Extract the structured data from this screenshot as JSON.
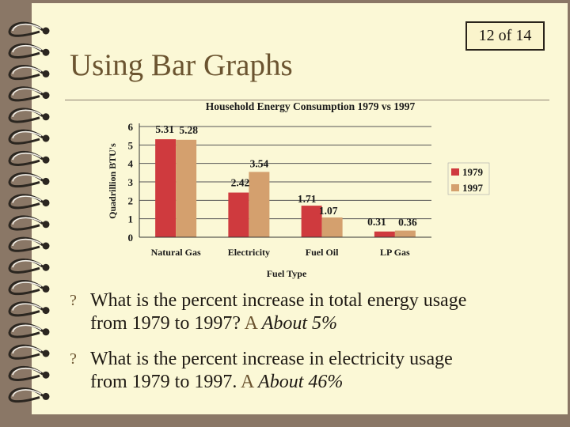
{
  "slide": {
    "counter": "12 of 14",
    "title": "Using Bar Graphs"
  },
  "bullets": [
    {
      "marker": "?",
      "line1": "What is the percent increase in total energy usage",
      "line2_prefix": "from 1979 to 1997?",
      "answer_mark": "A",
      "answer": "About 5%"
    },
    {
      "marker": "?",
      "line1": "What is the percent increase in electricity usage",
      "line2_prefix": "from 1979 to 1997.",
      "answer_mark": "A",
      "answer": "About 46%"
    }
  ],
  "colors": {
    "series_1979": "#cf3a3e",
    "series_1997": "#d4a06e",
    "title_text": "#6b5430",
    "page_background": "#fbf8d6",
    "frame_background": "#8a7766"
  },
  "chart_data": {
    "type": "bar",
    "title": "Household Energy Consumption 1979 vs 1997",
    "xlabel": "Fuel Type",
    "ylabel": "Quadrillion BTU's",
    "ylim": [
      0,
      6
    ],
    "yticks": [
      0,
      1,
      2,
      3,
      4,
      5,
      6
    ],
    "categories": [
      "Natural Gas",
      "Electricity",
      "Fuel Oil",
      "LP Gas"
    ],
    "series": [
      {
        "name": "1979",
        "values": [
          5.31,
          2.42,
          1.71,
          0.31
        ],
        "labels": [
          "5.31",
          "2.42",
          "1.71",
          "0.31"
        ]
      },
      {
        "name": "1997",
        "values": [
          5.28,
          3.54,
          1.07,
          0.36
        ],
        "labels": [
          "5.28",
          "3.54",
          "1.07",
          "0.36"
        ]
      }
    ],
    "grid": true,
    "legend": "right"
  }
}
